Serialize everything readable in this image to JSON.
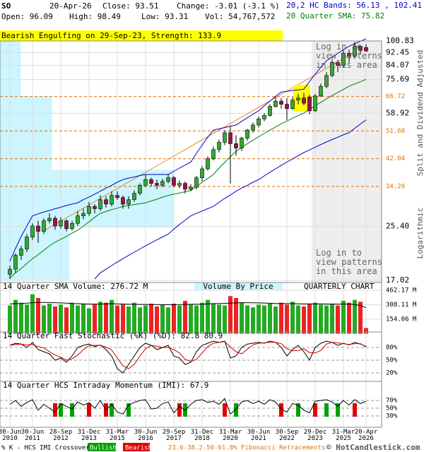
{
  "header": {
    "symbol": "SO",
    "date": "20-Apr-26",
    "close": "Close: 93.51",
    "change": "Change: -3.01 (-3.1 %)",
    "open": "Open: 96.09",
    "high": "High: 98.49",
    "low": "Low: 93.31",
    "volume": "Vol: 54,767,572",
    "bands": "20,2 HC Bands: 56.13 , 102.41",
    "sma": "20 Quarter SMA: 75.82"
  },
  "pattern_banner": "Bearish Engulfing on 29-Sep-23, Strength: 133.9",
  "login_notes": [
    "Log in to view patterns in this area",
    "Log in to view patterns in this area"
  ],
  "axis_notes": {
    "adjusted": "Split and Dividend Adjusted",
    "log": "Logarithmic"
  },
  "footer": {
    "crossover": "% K - HCS IMI Crossover:",
    "bullish": "Bullish",
    "bearish": "Bearish",
    "fib": "23.6-38.2-50-61.8% Fibonacci Retracements",
    "brand": "© HotCandlestick.com"
  },
  "chart_data": [
    {
      "type": "candlestick",
      "categories": [
        "30-Jun 2010",
        null,
        null,
        null,
        "30-Jun 2011",
        null,
        null,
        null,
        null,
        "28-Sep 2012",
        null,
        null,
        null,
        null,
        "31-Dec 2013",
        null,
        null,
        null,
        null,
        "31-Mar 2015",
        null,
        null,
        null,
        null,
        "30-Jun 2016",
        null,
        null,
        null,
        null,
        "29-Sep 2017",
        null,
        null,
        null,
        null,
        "31-Dec 2018",
        null,
        null,
        null,
        null,
        "31-Mar 2020",
        null,
        null,
        null,
        null,
        "30-Jun 2021",
        null,
        null,
        null,
        null,
        "30-Sep 2022",
        null,
        null,
        null,
        null,
        "29-Dec 2023",
        null,
        null,
        null,
        null,
        "31-Mar 2025",
        null,
        null,
        null,
        "20-Apr 2026"
      ],
      "open": [
        17.8,
        18.5,
        20.5,
        21.5,
        23.5,
        25.5,
        24.5,
        26.5,
        27.0,
        25.5,
        26.5,
        25.0,
        26.0,
        27.5,
        28.0,
        29.5,
        29.0,
        31.0,
        30.0,
        32.0,
        31.5,
        30.0,
        31.0,
        32.5,
        34.5,
        36.0,
        35.0,
        34.5,
        35.5,
        36.5,
        34.5,
        35.0,
        33.5,
        34.0,
        36.5,
        39.0,
        42.0,
        45.0,
        47.5,
        51.0,
        47.0,
        45.5,
        49.0,
        52.0,
        54.0,
        56.5,
        58.0,
        62.0,
        64.5,
        63.0,
        61.0,
        65.0,
        66.0,
        66.5,
        60.0,
        67.0,
        72.0,
        78.0,
        86.0,
        84.0,
        92.0,
        90.0,
        97.0,
        96.09
      ],
      "high": [
        19.0,
        20.8,
        22.0,
        24.0,
        26.0,
        26.5,
        27.0,
        28.0,
        27.5,
        27.2,
        26.8,
        26.5,
        28.5,
        29.0,
        30.5,
        30.0,
        32.0,
        31.8,
        33.0,
        33.0,
        32.0,
        31.8,
        33.2,
        35.0,
        37.5,
        36.5,
        36.0,
        36.2,
        37.5,
        37.0,
        35.8,
        35.5,
        34.8,
        37.0,
        39.8,
        42.8,
        46.0,
        48.5,
        52.0,
        53.5,
        50.0,
        49.5,
        52.5,
        55.0,
        57.5,
        59.0,
        63.0,
        66.5,
        66.0,
        66.0,
        66.5,
        68.0,
        68.5,
        67.5,
        68.0,
        73.5,
        80.0,
        88.0,
        87.5,
        94.0,
        94.5,
        100.0,
        98.0,
        98.49
      ],
      "low": [
        17.2,
        18.0,
        19.8,
        21.0,
        23.0,
        22.5,
        24.0,
        26.0,
        24.8,
        25.0,
        24.5,
        24.6,
        25.5,
        26.8,
        27.5,
        28.0,
        28.5,
        29.2,
        29.5,
        31.0,
        29.0,
        29.0,
        30.5,
        32.0,
        34.0,
        34.2,
        33.5,
        34.0,
        35.0,
        34.0,
        33.8,
        32.5,
        33.0,
        33.5,
        35.5,
        38.5,
        41.5,
        44.0,
        46.5,
        35.0,
        43.0,
        44.5,
        48.0,
        51.0,
        53.0,
        55.5,
        57.5,
        61.5,
        61.0,
        56.0,
        60.5,
        63.0,
        62.5,
        58.5,
        59.5,
        66.5,
        71.0,
        77.0,
        80.0,
        83.0,
        86.0,
        89.0,
        91.0,
        93.31
      ],
      "close": [
        18.5,
        20.5,
        21.5,
        23.5,
        25.5,
        24.5,
        26.5,
        27.0,
        25.5,
        26.5,
        25.0,
        26.0,
        27.5,
        28.0,
        29.5,
        29.0,
        31.0,
        30.0,
        32.0,
        31.5,
        30.0,
        31.0,
        32.5,
        34.5,
        36.0,
        35.0,
        34.5,
        35.5,
        36.5,
        34.5,
        35.0,
        33.5,
        34.0,
        36.5,
        39.0,
        42.0,
        45.0,
        47.5,
        51.0,
        47.0,
        45.5,
        49.0,
        52.0,
        54.0,
        56.5,
        58.0,
        62.0,
        64.5,
        63.0,
        61.0,
        65.0,
        66.0,
        63.5,
        60.0,
        67.0,
        72.0,
        78.0,
        86.0,
        84.0,
        92.0,
        90.0,
        97.0,
        94.0,
        93.51
      ],
      "up_color": "#33aa33",
      "down_color": "#a0104a",
      "lines": [
        {
          "color": "#0000cc",
          "values": [
            19.6,
            21.6,
            23.6,
            25.5,
            27.5,
            27.9,
            28.3,
            28.6,
            29.0,
            29.3,
            29.7,
            30.0,
            30.3,
            31.0,
            31.6,
            32.3,
            33.0,
            33.8,
            34.5,
            35.3,
            36.0,
            36.4,
            36.7,
            37.1,
            37.4,
            37.4,
            37.4,
            37.4,
            37.4,
            38.3,
            39.2,
            40.1,
            41.0,
            43.8,
            46.5,
            49.3,
            52.0,
            52.5,
            53.0,
            53.5,
            54.0,
            55.5,
            57.0,
            58.5,
            60.0,
            62.3,
            64.5,
            66.8,
            69.0,
            69.4,
            69.8,
            70.1,
            70.5,
            74.6,
            78.8,
            82.9,
            87.0,
            89.5,
            92.0,
            94.5,
            97.0,
            98.8,
            100.6,
            102.41
          ]
        },
        {
          "color": "#0000cc",
          "values": [
            null,
            null,
            null,
            null,
            null,
            null,
            null,
            null,
            null,
            null,
            null,
            null,
            null,
            null,
            null,
            17.2,
            18.0,
            18.5,
            19.0,
            19.5,
            20.0,
            20.5,
            21.0,
            21.5,
            22.0,
            22.5,
            23.0,
            23.5,
            24.0,
            24.9,
            25.8,
            26.6,
            27.5,
            28.0,
            28.5,
            29.0,
            29.5,
            30.4,
            31.3,
            32.1,
            33.0,
            33.8,
            34.5,
            35.3,
            36.0,
            37.0,
            38.0,
            39.0,
            40.0,
            41.0,
            42.0,
            43.0,
            44.0,
            44.9,
            45.8,
            46.7,
            47.6,
            48.5,
            49.3,
            50.2,
            51.0,
            52.7,
            54.4,
            56.13
          ]
        },
        {
          "color": "#008000",
          "values": [
            17.3,
            18.0,
            18.6,
            19.3,
            20.0,
            20.6,
            21.3,
            22.0,
            22.6,
            23.1,
            23.6,
            24.2,
            24.7,
            25.5,
            26.3,
            27.2,
            28.0,
            28.4,
            28.8,
            29.1,
            29.5,
            29.7,
            29.9,
            30.1,
            30.3,
            30.7,
            31.1,
            31.6,
            32.0,
            32.3,
            32.6,
            32.9,
            33.2,
            34.2,
            35.3,
            36.3,
            37.4,
            39.2,
            40.9,
            42.7,
            44.4,
            45.7,
            47.0,
            48.2,
            49.5,
            50.7,
            52.0,
            53.2,
            54.5,
            55.6,
            56.8,
            57.9,
            59.0,
            60.6,
            62.3,
            63.9,
            65.6,
            67.2,
            68.8,
            70.4,
            72.0,
            73.3,
            74.5,
            75.82
          ]
        }
      ],
      "volume_by_price": {
        "bins": [
          17.02,
          25.2,
          38.7,
          67.0,
          100.83
        ],
        "values": [
          40,
          100,
          30,
          12
        ],
        "xlim": [
          0,
          220
        ],
        "color": "#ccf5ff"
      },
      "fib_levels": {
        "values": [
          66.72,
          51.68,
          42.04,
          {
            "value": 34.2,
            "label": "34.20"
          }
        ],
        "color": "#e07000"
      },
      "ylim": [
        17.02,
        100.83
      ],
      "log": true,
      "grid": true,
      "yticks": [
        100.83,
        92.45,
        84.07,
        75.69,
        58.92,
        {
          "value": 25.4,
          "label": "25.40"
        },
        17.02
      ]
    },
    {
      "type": "volume",
      "title": "14 Quarter SMA Volume: 276.72 M",
      "notes": [
        "Volume By Price",
        "QUARTERLY CHART"
      ],
      "values": [
        300,
        360,
        330,
        310,
        420,
        380,
        300,
        320,
        290,
        310,
        280,
        330,
        300,
        320,
        270,
        310,
        340,
        330,
        360,
        300,
        310,
        290,
        330,
        280,
        300,
        320,
        290,
        310,
        280,
        320,
        300,
        350,
        310,
        300,
        330,
        360,
        320,
        310,
        300,
        400,
        380,
        330,
        300,
        280,
        310,
        300,
        320,
        290,
        330,
        310,
        340,
        300,
        290,
        320,
        330,
        310,
        300,
        320,
        300,
        350,
        330,
        360,
        340,
        60
      ],
      "sma": {
        "color": "#000000",
        "values": [
          318,
          320,
          322,
          325,
          330,
          332,
          333,
          332,
          330,
          328,
          325,
          322,
          320,
          318,
          316,
          315,
          316,
          318,
          320,
          318,
          316,
          314,
          313,
          312,
          311,
          310,
          310,
          309,
          308,
          309,
          310,
          312,
          313,
          314,
          315,
          318,
          320,
          322,
          323,
          326,
          328,
          330,
          330,
          329,
          328,
          326,
          324,
          322,
          321,
          320,
          320,
          319,
          318,
          318,
          318,
          317,
          316,
          316,
          315,
          316,
          316,
          310,
          300,
          276.72
        ]
      },
      "ylim": [
        0,
        500
      ],
      "grid": true,
      "yticks": [
        {
          "value": 462.17,
          "label": "462.17 M"
        },
        {
          "value": 308.11,
          "label": "308.11 M"
        },
        {
          "value": 154.06,
          "label": "154.06 M"
        }
      ]
    },
    {
      "type": "stochastic",
      "title": "14 Quarter Fast Stochastic (%K) (%D): 82.8 80.9",
      "series": [
        {
          "color": "#000000",
          "values": [
            85,
            90,
            88,
            80,
            92,
            75,
            70,
            65,
            50,
            55,
            45,
            60,
            80,
            85,
            88,
            82,
            86,
            75,
            60,
            30,
            20,
            40,
            60,
            80,
            90,
            85,
            75,
            80,
            85,
            60,
            55,
            40,
            45,
            70,
            85,
            90,
            95,
            92,
            95,
            55,
            60,
            80,
            88,
            90,
            92,
            90,
            95,
            92,
            80,
            60,
            75,
            85,
            70,
            50,
            80,
            90,
            95,
            92,
            85,
            90,
            86,
            92,
            88,
            82.8
          ]
        },
        {
          "color": "#cc0000",
          "values": [
            85,
            87,
            88,
            86,
            87,
            82,
            79,
            70,
            62,
            57,
            50,
            53,
            62,
            75,
            84,
            85,
            85,
            81,
            74,
            55,
            37,
            30,
            40,
            60,
            77,
            85,
            83,
            80,
            80,
            75,
            67,
            52,
            47,
            52,
            67,
            82,
            90,
            92,
            94,
            81,
            70,
            65,
            76,
            86,
            90,
            91,
            92,
            92,
            89,
            77,
            72,
            73,
            77,
            68,
            67,
            73,
            88,
            92,
            91,
            89,
            87,
            89,
            89,
            80.9
          ]
        }
      ],
      "ylim": [
        0,
        100
      ],
      "yticks": [
        {
          "value": 80,
          "label": "80%"
        },
        {
          "value": 50,
          "label": "50%"
        },
        {
          "value": 20,
          "label": "20%"
        }
      ]
    },
    {
      "type": "imi",
      "title": "14 Quarter HCS Intraday Momentum (IMI): 67.9",
      "color": "#000000",
      "values": [
        60,
        70,
        55,
        65,
        72,
        45,
        60,
        50,
        40,
        62,
        55,
        48,
        66,
        58,
        64,
        50,
        70,
        45,
        60,
        40,
        35,
        58,
        65,
        70,
        72,
        48,
        50,
        62,
        66,
        38,
        55,
        45,
        60,
        70,
        72,
        65,
        68,
        60,
        75,
        35,
        48,
        66,
        70,
        62,
        68,
        60,
        72,
        66,
        48,
        40,
        62,
        58,
        45,
        38,
        68,
        70,
        72,
        66,
        55,
        70,
        58,
        72,
        62,
        67.9
      ],
      "signals": [
        null,
        null,
        null,
        null,
        null,
        null,
        null,
        null,
        "Bearish",
        "Bullish",
        null,
        "Bullish",
        null,
        null,
        "Bearish",
        null,
        null,
        "Bearish",
        "Bullish",
        null,
        null,
        "Bullish",
        null,
        null,
        null,
        null,
        null,
        null,
        null,
        null,
        "Bearish",
        "Bullish",
        null,
        null,
        null,
        null,
        null,
        null,
        "Bearish",
        null,
        "Bullish",
        null,
        null,
        null,
        null,
        null,
        null,
        null,
        "Bearish",
        null,
        null,
        "Bullish",
        null,
        null,
        "Bearish",
        null,
        "Bullish",
        null,
        "Bullish",
        null,
        null,
        "Bearish",
        null,
        null
      ],
      "signal_colors": {
        "Bullish": "#00a000",
        "Bearish": "#e00000"
      },
      "ylim": [
        0,
        100
      ],
      "yticks": [
        {
          "value": 70,
          "label": "70%"
        },
        {
          "value": 50,
          "label": "50%"
        },
        {
          "value": 30,
          "label": "30%"
        }
      ]
    }
  ]
}
